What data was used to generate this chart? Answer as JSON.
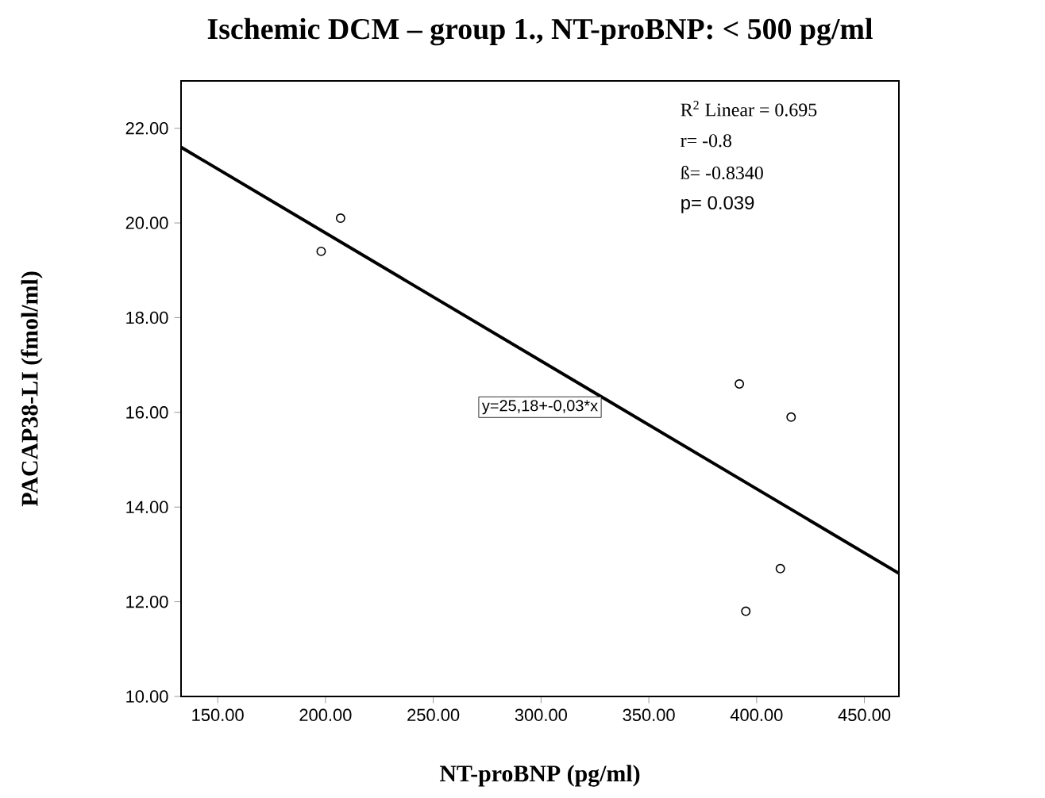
{
  "chart_data": {
    "type": "scatter",
    "title": "Ischemic DCM – group 1., NT-proBNP: < 500 pg/ml",
    "xlabel": "NT-proBNP (pg/ml)",
    "ylabel": "PACAP38-LI (fmol/ml)",
    "series": [
      {
        "marker": "circle",
        "color": "#000000",
        "x": [
          198,
          207,
          392,
          395,
          411,
          416
        ],
        "values": [
          19.4,
          20.1,
          16.6,
          11.8,
          12.7,
          15.9
        ]
      },
      {
        "type": "line",
        "marker": "none",
        "color": "#000000",
        "x": [
          133,
          466
        ],
        "values": [
          21.6,
          12.6
        ]
      }
    ],
    "xlim": [
      133,
      466
    ],
    "ylim": [
      10,
      23
    ],
    "xticks": [
      {
        "value": 150,
        "label": "150.00"
      },
      {
        "value": 200,
        "label": "200.00"
      },
      {
        "value": 250,
        "label": "250.00"
      },
      {
        "value": 300,
        "label": "300.00"
      },
      {
        "value": 350,
        "label": "350.00"
      },
      {
        "value": 400,
        "label": "400.00"
      },
      {
        "value": 450,
        "label": "450.00"
      }
    ],
    "yticks": [
      {
        "value": 10,
        "label": "10.00"
      },
      {
        "value": 12,
        "label": "12.00"
      },
      {
        "value": 14,
        "label": "14.00"
      },
      {
        "value": 16,
        "label": "16.00"
      },
      {
        "value": 18,
        "label": "18.00"
      },
      {
        "value": 20,
        "label": "20.00"
      },
      {
        "value": 22,
        "label": "22.00"
      }
    ],
    "grid": false,
    "annotations": [
      "R$^{2}$ Linear = 0.695",
      "r=  -0.8",
      "ß= -0.8340",
      "p= 0.039",
      "y=25,18+-0,03*x"
    ]
  }
}
